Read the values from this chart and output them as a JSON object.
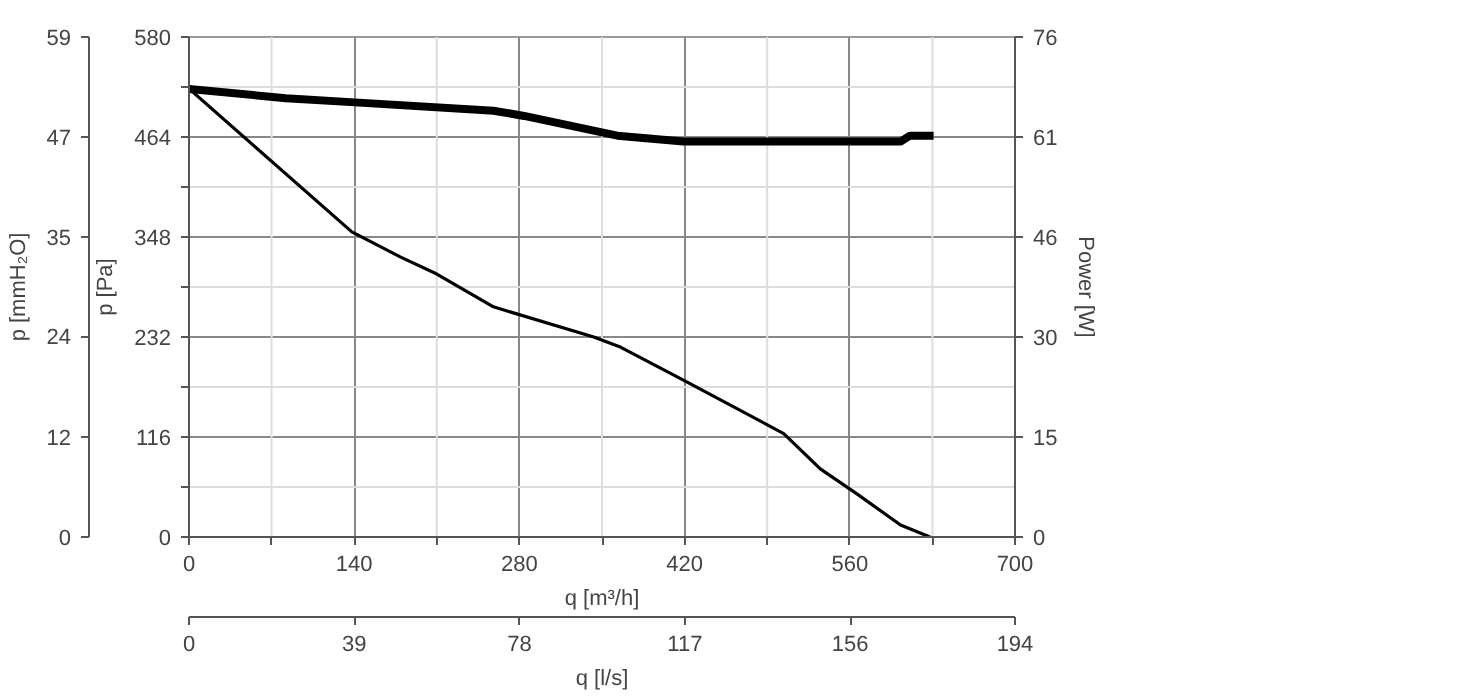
{
  "chart_data": {
    "type": "line",
    "xlabel": "q [m³/h]",
    "ylabel": "p [Pa]",
    "y2label": "Power [W]",
    "y3label": "p [mmH₂O]",
    "x2label": "q [l/s]",
    "xlim": [
      0,
      700
    ],
    "xticks": [
      0,
      {
        "value": 70,
        "label": null
      },
      140,
      {
        "value": 210,
        "label": null
      },
      280,
      {
        "value": 350,
        "label": null
      },
      420,
      {
        "value": 490,
        "label": null
      },
      560,
      {
        "value": 630,
        "label": null
      },
      700
    ],
    "ylim": [
      0,
      580
    ],
    "yticks": [
      0,
      {
        "value": 58,
        "label": null
      },
      116,
      {
        "value": 174,
        "label": null
      },
      232,
      {
        "value": 290,
        "label": null
      },
      348,
      {
        "value": 406,
        "label": null
      },
      464,
      {
        "value": 522,
        "label": null
      },
      580
    ],
    "y2lim": [
      0,
      76
    ],
    "y2ticks": [
      0,
      {
        "value": 15.2,
        "label": "15"
      },
      {
        "value": 30.4,
        "label": "30"
      },
      {
        "value": 45.6,
        "label": "46"
      },
      {
        "value": 60.8,
        "label": "61"
      },
      76
    ],
    "y3lim": [
      0,
      59.1
    ],
    "y3ticks": [
      0,
      {
        "value": 11.8,
        "label": "12"
      },
      {
        "value": 23.7,
        "label": "24"
      },
      {
        "value": 35.5,
        "label": "35"
      },
      {
        "value": 47.3,
        "label": "47"
      },
      {
        "value": 59.1,
        "label": "59"
      }
    ],
    "x2lim": [
      0,
      194.4
    ],
    "x2ticks": [
      0,
      {
        "value": 38.9,
        "label": "39"
      },
      {
        "value": 77.8,
        "label": "78"
      },
      {
        "value": 116.7,
        "label": "117"
      },
      {
        "value": 155.6,
        "label": "156"
      },
      {
        "value": 194.4,
        "label": "194"
      }
    ],
    "grid": true,
    "line_style": "solid",
    "marker": "none",
    "series": [
      {
        "color": "#000000",
        "x": [
          0,
          138,
          179,
          210,
          258,
          343,
          366,
          419,
          504,
          535,
          566,
          603,
          628
        ],
        "values": [
          520,
          354,
          325,
          305,
          267,
          232,
          220,
          182,
          120,
          79,
          50,
          14,
          0
        ]
      },
      {
        "color": "#000000",
        "axis": "y2",
        "x": [
          0,
          82,
          137,
          258,
          284,
          363,
          419,
          603,
          611,
          631
        ],
        "values": [
          68.1,
          66.7,
          66.1,
          64.8,
          64.0,
          61.0,
          60.1,
          60.1,
          61.0,
          61.0
        ]
      }
    ]
  }
}
